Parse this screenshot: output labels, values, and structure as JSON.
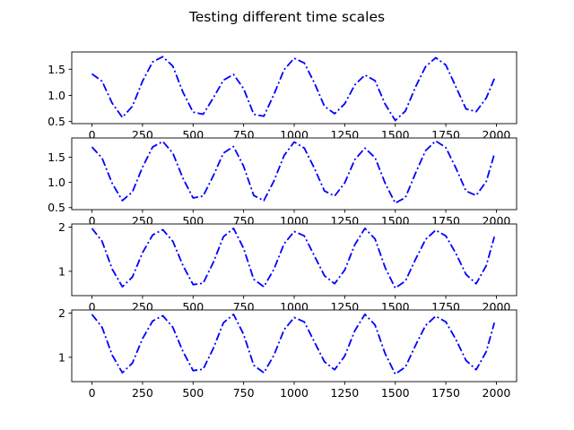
{
  "chart_data": {
    "title": "Testing different time scales",
    "type": "line",
    "line_color": "#0000ff",
    "line_style": "dash-dot",
    "x_ticks": [
      0,
      250,
      500,
      750,
      1000,
      1250,
      1500,
      1750,
      2000
    ],
    "panels": [
      {
        "xlim": [
          -100,
          2100
        ],
        "ylim": [
          0.46,
          1.83
        ],
        "y_ticks": [
          0.5,
          1.0,
          1.5
        ],
        "y_tick_labels": [
          "0.5",
          "1.0",
          "1.5"
        ],
        "x": [
          0,
          50,
          100,
          150,
          200,
          250,
          300,
          350,
          400,
          450,
          500,
          550,
          600,
          650,
          700,
          750,
          800,
          850,
          900,
          950,
          1000,
          1050,
          1100,
          1150,
          1200,
          1250,
          1300,
          1350,
          1400,
          1450,
          1500,
          1550,
          1600,
          1650,
          1700,
          1750,
          1800,
          1850,
          1900,
          1950,
          1990
        ],
        "y": [
          1.41,
          1.27,
          0.85,
          0.58,
          0.79,
          1.27,
          1.64,
          1.74,
          1.56,
          1.06,
          0.68,
          0.64,
          0.95,
          1.29,
          1.4,
          1.13,
          0.64,
          0.6,
          1.02,
          1.49,
          1.71,
          1.62,
          1.24,
          0.79,
          0.65,
          0.84,
          1.2,
          1.39,
          1.28,
          0.83,
          0.52,
          0.7,
          1.16,
          1.55,
          1.72,
          1.58,
          1.16,
          0.74,
          0.69,
          0.95,
          1.32
        ]
      },
      {
        "xlim": [
          -100,
          2100
        ],
        "ylim": [
          0.46,
          1.88
        ],
        "y_ticks": [
          0.5,
          1.0,
          1.5
        ],
        "y_tick_labels": [
          "0.5",
          "1.0",
          "1.5"
        ],
        "x": [
          0,
          50,
          100,
          150,
          200,
          250,
          300,
          350,
          400,
          450,
          500,
          550,
          600,
          650,
          700,
          750,
          800,
          850,
          900,
          950,
          1000,
          1050,
          1100,
          1150,
          1200,
          1250,
          1300,
          1350,
          1400,
          1450,
          1500,
          1550,
          1600,
          1650,
          1700,
          1750,
          1800,
          1850,
          1900,
          1950,
          1990
        ],
        "y": [
          1.7,
          1.48,
          0.98,
          0.64,
          0.81,
          1.3,
          1.7,
          1.81,
          1.58,
          1.08,
          0.69,
          0.73,
          1.13,
          1.58,
          1.71,
          1.32,
          0.74,
          0.64,
          1.03,
          1.53,
          1.8,
          1.68,
          1.28,
          0.83,
          0.73,
          0.99,
          1.45,
          1.68,
          1.49,
          0.98,
          0.59,
          0.7,
          1.18,
          1.63,
          1.82,
          1.69,
          1.28,
          0.83,
          0.74,
          1.02,
          1.56
        ]
      },
      {
        "xlim": [
          -100,
          2100
        ],
        "ylim": [
          0.45,
          2.07
        ],
        "y_ticks": [
          1,
          2
        ],
        "y_tick_labels": [
          "1",
          "2"
        ],
        "x": [
          0,
          50,
          100,
          150,
          200,
          250,
          300,
          350,
          400,
          450,
          500,
          550,
          600,
          650,
          700,
          750,
          800,
          850,
          900,
          950,
          1000,
          1050,
          1100,
          1150,
          1200,
          1250,
          1300,
          1350,
          1400,
          1450,
          1500,
          1550,
          1600,
          1650,
          1700,
          1750,
          1800,
          1850,
          1900,
          1950,
          1990
        ],
        "y": [
          1.97,
          1.68,
          1.05,
          0.65,
          0.87,
          1.42,
          1.82,
          1.94,
          1.68,
          1.13,
          0.7,
          0.73,
          1.2,
          1.78,
          1.97,
          1.52,
          0.82,
          0.65,
          1.05,
          1.62,
          1.9,
          1.8,
          1.35,
          0.9,
          0.72,
          1.03,
          1.6,
          1.97,
          1.73,
          1.08,
          0.62,
          0.78,
          1.27,
          1.72,
          1.93,
          1.8,
          1.4,
          0.93,
          0.72,
          1.13,
          1.78
        ]
      },
      {
        "xlim": [
          -100,
          2100
        ],
        "ylim": [
          0.45,
          2.07
        ],
        "y_ticks": [
          1,
          2
        ],
        "y_tick_labels": [
          "1",
          "2"
        ],
        "x": [
          0,
          50,
          100,
          150,
          200,
          250,
          300,
          350,
          400,
          450,
          500,
          550,
          600,
          650,
          700,
          750,
          800,
          850,
          900,
          950,
          1000,
          1050,
          1100,
          1150,
          1200,
          1250,
          1300,
          1350,
          1400,
          1450,
          1500,
          1550,
          1600,
          1650,
          1700,
          1750,
          1800,
          1850,
          1900,
          1950,
          1990
        ],
        "y": [
          1.97,
          1.68,
          1.05,
          0.65,
          0.87,
          1.42,
          1.82,
          1.94,
          1.68,
          1.13,
          0.7,
          0.73,
          1.2,
          1.78,
          1.97,
          1.52,
          0.82,
          0.65,
          1.05,
          1.62,
          1.9,
          1.8,
          1.35,
          0.9,
          0.72,
          1.03,
          1.6,
          1.97,
          1.73,
          1.08,
          0.62,
          0.78,
          1.27,
          1.72,
          1.93,
          1.8,
          1.4,
          0.93,
          0.72,
          1.13,
          1.78
        ]
      }
    ]
  }
}
